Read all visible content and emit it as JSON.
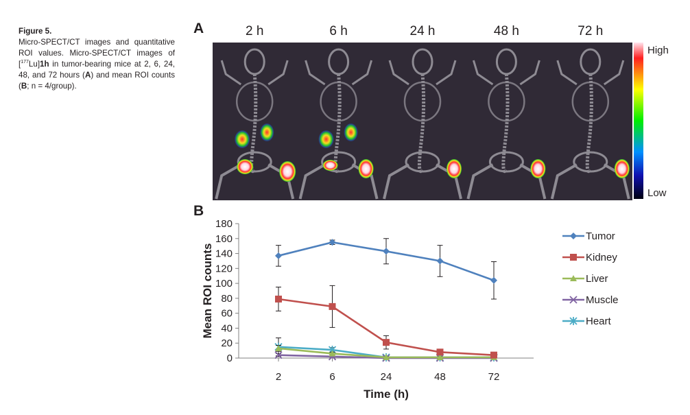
{
  "caption": {
    "label": "Figure 5.",
    "text_before": "Micro-SPECT/CT images and quantitative ROI values. Micro-SPECT/CT images of [",
    "isotope_mass": "177",
    "text_isotope": "Lu]",
    "compound": "1h",
    "text_middle": " in tumor-bearing mice at 2, 6, 24, 48, and 72 hours (",
    "ref_a": "A",
    "text_between": ") and mean ROI counts (",
    "ref_b": "B",
    "text_n": "; n = 4/group)."
  },
  "panel_a": {
    "label": "A",
    "timepoints": [
      "2 h",
      "6 h",
      "24 h",
      "48 h",
      "72 h"
    ],
    "colorbar": {
      "high_label": "High",
      "low_label": "Low"
    },
    "colors": {
      "background": "#302a36",
      "skeleton": "#8e8b93",
      "hot": "#ff2a2a",
      "core": "#ffe6ee"
    }
  },
  "panel_b": {
    "label": "B"
  },
  "chart_data": {
    "type": "line",
    "title": "",
    "xlabel": "Time (h)",
    "ylabel": "Mean ROI counts",
    "categories": [
      "2",
      "6",
      "24",
      "48",
      "72"
    ],
    "ylim": [
      0,
      180
    ],
    "yticks": [
      0,
      20,
      40,
      60,
      80,
      100,
      120,
      140,
      160,
      180
    ],
    "grid": false,
    "legend_position": "right",
    "series": [
      {
        "name": "Tumor",
        "color": "#4f81bd",
        "marker": "diamond",
        "values": [
          137,
          155,
          143,
          130,
          104
        ],
        "errors": [
          14,
          3,
          17,
          21,
          25
        ]
      },
      {
        "name": "Kidney",
        "color": "#c0504d",
        "marker": "square",
        "values": [
          79,
          69,
          21,
          8,
          4
        ],
        "errors": [
          16,
          28,
          9,
          3,
          2
        ]
      },
      {
        "name": "Liver",
        "color": "#9bbb59",
        "marker": "triangle",
        "values": [
          13,
          6,
          1,
          1,
          1
        ],
        "errors": [
          4,
          2,
          1,
          1,
          1
        ]
      },
      {
        "name": "Muscle",
        "color": "#8064a2",
        "marker": "x",
        "values": [
          4,
          2,
          0,
          0,
          0
        ],
        "errors": [
          2,
          1,
          0,
          0,
          0
        ]
      },
      {
        "name": "Heart",
        "color": "#4bacc6",
        "marker": "star",
        "values": [
          15,
          11,
          1,
          1,
          1
        ],
        "errors": [
          12,
          3,
          1,
          1,
          1
        ]
      }
    ]
  }
}
